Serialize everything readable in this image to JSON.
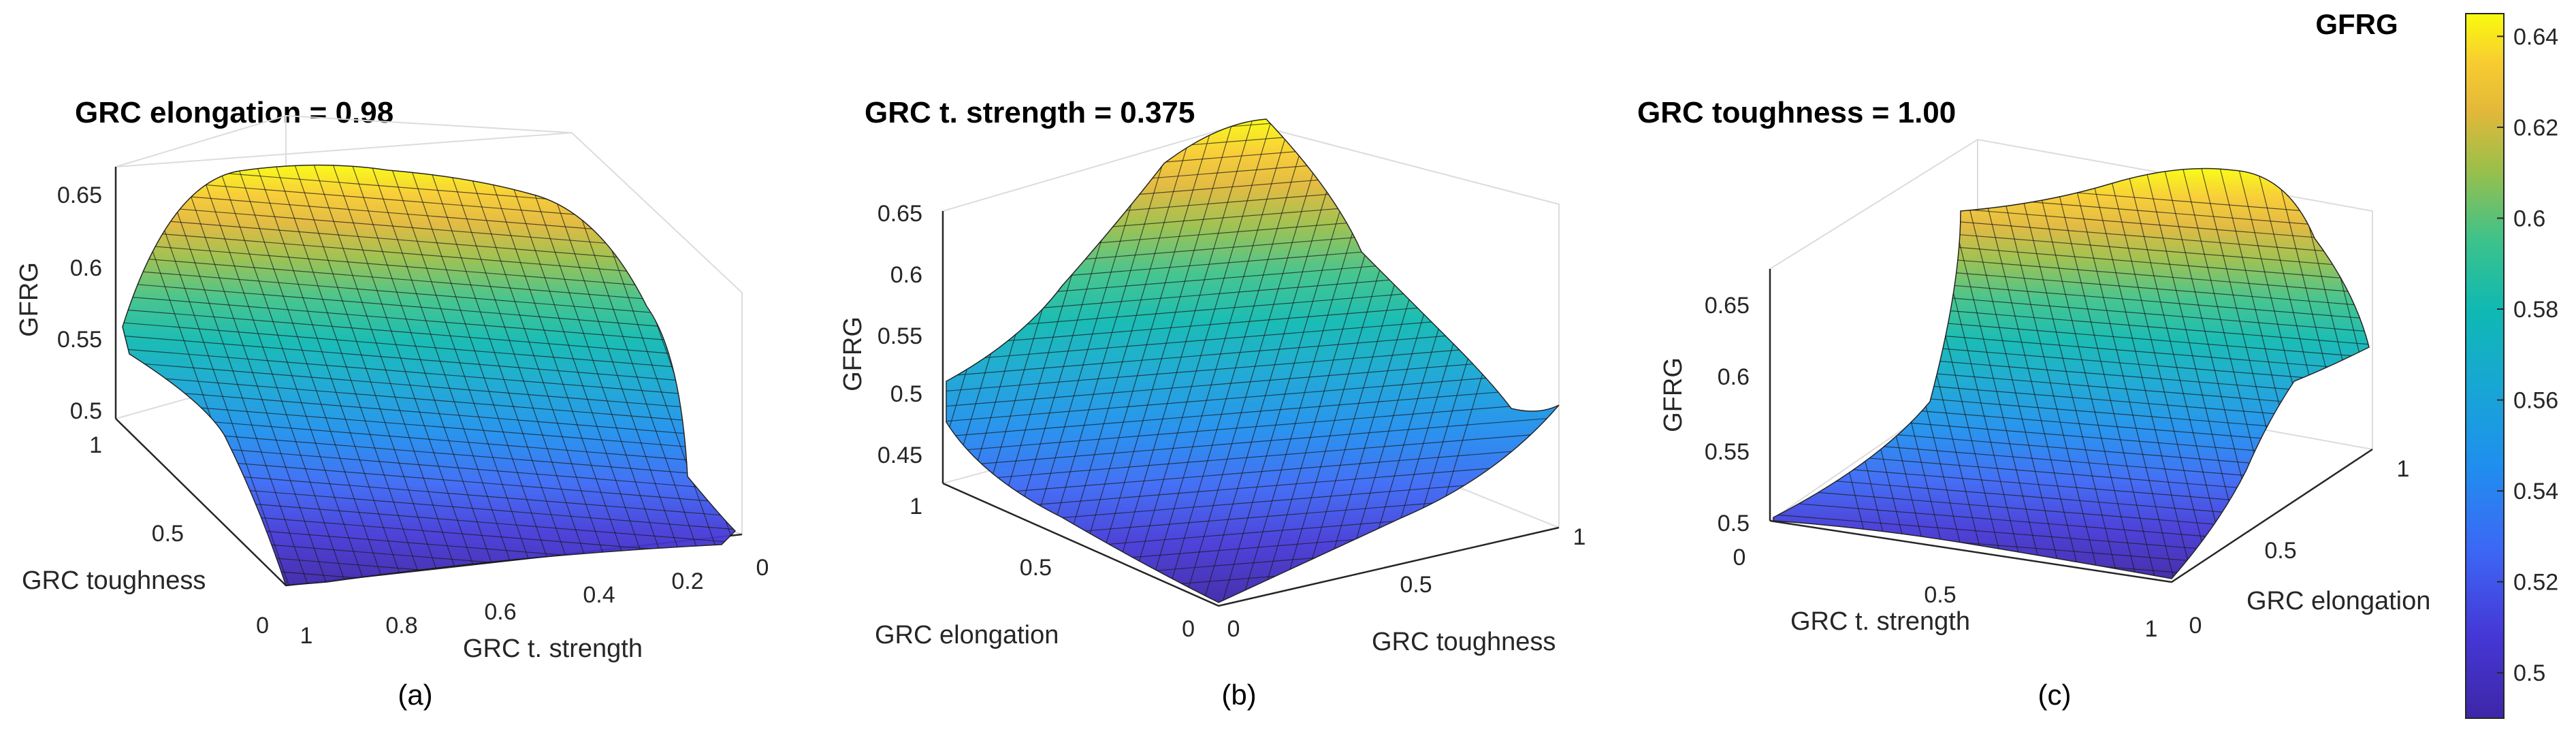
{
  "chart_data": [
    {
      "type": "surface",
      "panel": "(a)",
      "title": "GRC elongation = 0.98",
      "zlabel": "GFRG",
      "xlabel": "GRC t. strength",
      "ylabel": "GRC toughness",
      "x_ticks": [
        "1",
        "0.8",
        "0.6",
        "0.4",
        "0.2",
        "0"
      ],
      "y_ticks": [
        "0",
        "0.5",
        "1"
      ],
      "z_ticks": [
        "0.5",
        "0.55",
        "0.6",
        "0.65"
      ],
      "zlim": [
        0.49,
        0.66
      ],
      "z_min_observed": 0.5,
      "z_max_observed": 0.65
    },
    {
      "type": "surface",
      "panel": "(b)",
      "title": "GRC t. strength = 0.375",
      "zlabel": "GFRG",
      "xlabel": "GRC toughness",
      "ylabel": "GRC elongation",
      "x_ticks": [
        "0",
        "0.5",
        "1"
      ],
      "y_ticks": [
        "0",
        "0.5",
        "1"
      ],
      "z_ticks": [
        "0.45",
        "0.5",
        "0.55",
        "0.6",
        "0.65"
      ],
      "zlim": [
        0.44,
        0.66
      ],
      "z_min_observed": 0.45,
      "z_max_observed": 0.65
    },
    {
      "type": "surface",
      "panel": "(c)",
      "title": "GRC toughness = 1.00",
      "zlabel": "GFRG",
      "xlabel": "GRC t. strength",
      "ylabel": "GRC elongation",
      "x_ticks": [
        "0",
        "0.5",
        "1"
      ],
      "y_ticks": [
        "0",
        "0.5",
        "1"
      ],
      "z_ticks": [
        "0.5",
        "0.55",
        "0.6",
        "0.65"
      ],
      "zlim": [
        0.49,
        0.67
      ],
      "z_min_observed": 0.5,
      "z_max_observed": 0.65
    }
  ],
  "colorbar": {
    "title": "GFRG",
    "colormap": "parula",
    "range": [
      0.49,
      0.645
    ],
    "ticks": [
      "0.5",
      "0.52",
      "0.54",
      "0.56",
      "0.58",
      "0.6",
      "0.62",
      "0.64"
    ],
    "tick_values": [
      0.5,
      0.52,
      0.54,
      0.56,
      0.58,
      0.6,
      0.62,
      0.64
    ]
  },
  "colors": {
    "parula_low": "#3e26a8",
    "parula_mid": "#16b7b2",
    "parula_high": "#f9fb0e"
  }
}
